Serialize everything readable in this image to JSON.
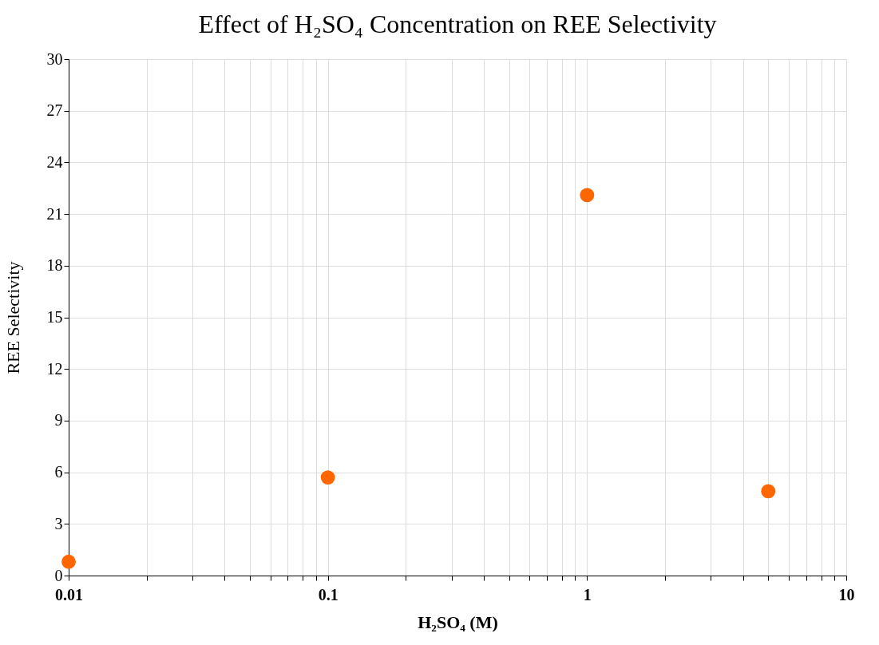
{
  "chart_data": {
    "type": "scatter",
    "title": "Effect of H₂SO₄ Concentration on REE Selectivity",
    "xlabel": "H₂SO₄ (M)",
    "ylabel": "REE Selectivity",
    "x": [
      0.01,
      0.1,
      1,
      5
    ],
    "series": [
      {
        "color": "#ff6600",
        "values": [
          0.8,
          5.7,
          22.1,
          4.9
        ]
      }
    ],
    "log": "x",
    "xlim": [
      0.01,
      10
    ],
    "ylim": [
      0,
      30
    ],
    "xticks": [
      0.01,
      {
        "value": 0.02,
        "label": null
      },
      {
        "value": 0.03,
        "label": null
      },
      {
        "value": 0.04,
        "label": null
      },
      {
        "value": 0.05,
        "label": null
      },
      {
        "value": 0.06,
        "label": null
      },
      {
        "value": 0.07,
        "label": null
      },
      {
        "value": 0.08,
        "label": null
      },
      {
        "value": 0.09,
        "label": null
      },
      0.1,
      {
        "value": 0.2,
        "label": null
      },
      {
        "value": 0.3,
        "label": null
      },
      {
        "value": 0.4,
        "label": null
      },
      {
        "value": 0.5,
        "label": null
      },
      {
        "value": 0.6,
        "label": null
      },
      {
        "value": 0.7,
        "label": null
      },
      {
        "value": 0.8,
        "label": null
      },
      {
        "value": 0.9,
        "label": null
      },
      1,
      {
        "value": 2,
        "label": null
      },
      {
        "value": 3,
        "label": null
      },
      {
        "value": 4,
        "label": null
      },
      {
        "value": 5,
        "label": null
      },
      {
        "value": 6,
        "label": null
      },
      {
        "value": 7,
        "label": null
      },
      {
        "value": 8,
        "label": null
      },
      {
        "value": 9,
        "label": null
      },
      10
    ],
    "yticks": [
      0,
      3,
      6,
      9,
      12,
      15,
      18,
      21,
      24,
      27,
      30
    ],
    "grid": true,
    "legend": false,
    "marker": "circle"
  }
}
